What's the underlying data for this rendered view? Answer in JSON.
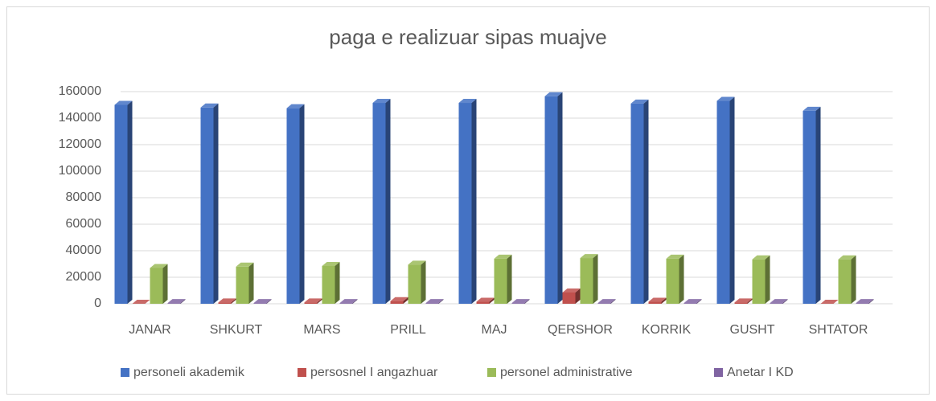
{
  "chart_data": {
    "type": "bar3d",
    "title": "paga e realizuar sipas muajve",
    "categories": [
      "JANAR",
      "SHKURT",
      "MARS",
      "PRILL",
      "MAJ",
      "QERSHOR",
      "KORRIK",
      "GUSHT",
      "SHTATOR"
    ],
    "series": [
      {
        "name": "personeli akademik",
        "color": "#4472c4",
        "values": [
          150000,
          148000,
          147500,
          151500,
          151500,
          156500,
          151000,
          153000,
          145500
        ]
      },
      {
        "name": "persosnel I angazhuar",
        "color": "#c0504d",
        "values": [
          0,
          1000,
          1000,
          2000,
          1500,
          8500,
          1500,
          1000,
          0
        ]
      },
      {
        "name": "personel administrative",
        "color": "#9bbb59",
        "values": [
          27000,
          28000,
          28500,
          29500,
          34000,
          34500,
          34000,
          33500,
          33500
        ]
      },
      {
        "name": "Anetar I KD",
        "color": "#8064a2",
        "values": [
          500,
          500,
          500,
          500,
          500,
          500,
          500,
          500,
          500
        ]
      }
    ],
    "ylim": [
      0,
      160000
    ],
    "yticks": [
      0,
      20000,
      40000,
      60000,
      80000,
      100000,
      120000,
      140000,
      160000
    ],
    "grid": true,
    "legend": "bottom"
  }
}
